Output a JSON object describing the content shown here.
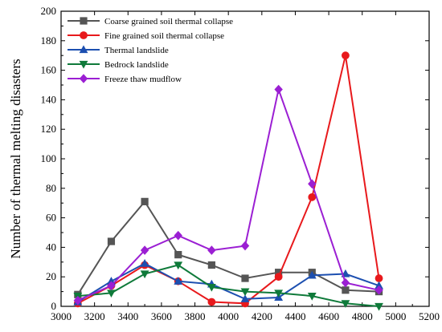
{
  "chart_data": {
    "type": "line",
    "xlabel": "",
    "ylabel": "Number of thermal melting disasters",
    "xlim": [
      3000,
      5200
    ],
    "ylim": [
      0,
      200
    ],
    "xticks": [
      3000,
      3200,
      3400,
      3600,
      3800,
      4000,
      4200,
      4400,
      4600,
      4800,
      5000,
      5200
    ],
    "yticks": [
      0,
      20,
      40,
      60,
      80,
      100,
      120,
      140,
      160,
      180,
      200
    ],
    "x": [
      3100,
      3300,
      3500,
      3700,
      3900,
      4100,
      4300,
      4500,
      4700,
      4900
    ],
    "legend_position": "top-left",
    "grid": false,
    "series": [
      {
        "name": "Coarse grained soil thermal collapse",
        "color": "#555555",
        "marker": "square",
        "values": [
          8,
          44,
          71,
          35,
          28,
          19,
          23,
          23,
          11,
          10
        ]
      },
      {
        "name": "Fine grained soil thermal collapse",
        "color": "#e8191c",
        "marker": "circle",
        "values": [
          2,
          14,
          28,
          17,
          3,
          2,
          20,
          74,
          170,
          19
        ]
      },
      {
        "name": "Thermal landslide",
        "color": "#1c4fb0",
        "marker": "triangle-up",
        "values": [
          3,
          17,
          29,
          17,
          15,
          5,
          6,
          21,
          22,
          14
        ]
      },
      {
        "name": "Bedrock landslide",
        "color": "#0f7a3a",
        "marker": "triangle-down",
        "values": [
          7,
          9,
          22,
          28,
          13,
          10,
          9,
          7,
          2,
          0
        ]
      },
      {
        "name": "Freeze thaw mudflow",
        "color": "#9b1fd3",
        "marker": "diamond",
        "values": [
          4,
          14,
          38,
          48,
          38,
          41,
          147,
          83,
          16,
          11
        ]
      }
    ]
  }
}
